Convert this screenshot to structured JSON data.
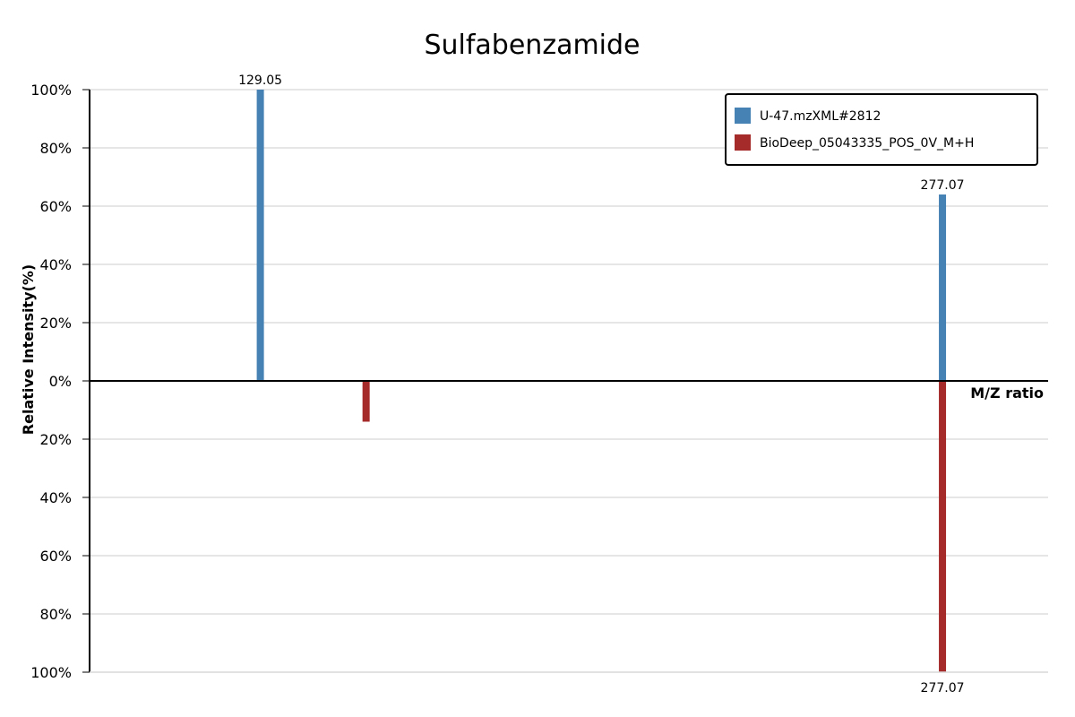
{
  "chart_data": {
    "type": "bar",
    "title": "Sulfabenzamide",
    "xlabel": "M/Z ratio",
    "ylabel": "Relative Intensity(%)",
    "y_ticks_top": [
      "100%",
      "80%",
      "60%",
      "40%",
      "20%",
      "0%"
    ],
    "y_ticks_bottom": [
      "20%",
      "40%",
      "60%",
      "80%",
      "100%"
    ],
    "ylim": [
      -100,
      100
    ],
    "xlim": [
      92,
      300
    ],
    "grid": true,
    "legend_position": "top-right",
    "series": [
      {
        "name": "U-47.mzXML#2812",
        "color": "#4682b4",
        "direction": "up",
        "peaks": [
          {
            "mz": 129.05,
            "intensity": 100,
            "label": "129.05"
          },
          {
            "mz": 277.07,
            "intensity": 64,
            "label": "277.07"
          }
        ]
      },
      {
        "name": "BioDeep_05043335_POS_0V_M+H",
        "color": "#a52a2a",
        "direction": "down",
        "peaks": [
          {
            "mz": 152.0,
            "intensity": 14,
            "label": ""
          },
          {
            "mz": 277.07,
            "intensity": 100,
            "label": "277.07"
          }
        ]
      }
    ]
  }
}
